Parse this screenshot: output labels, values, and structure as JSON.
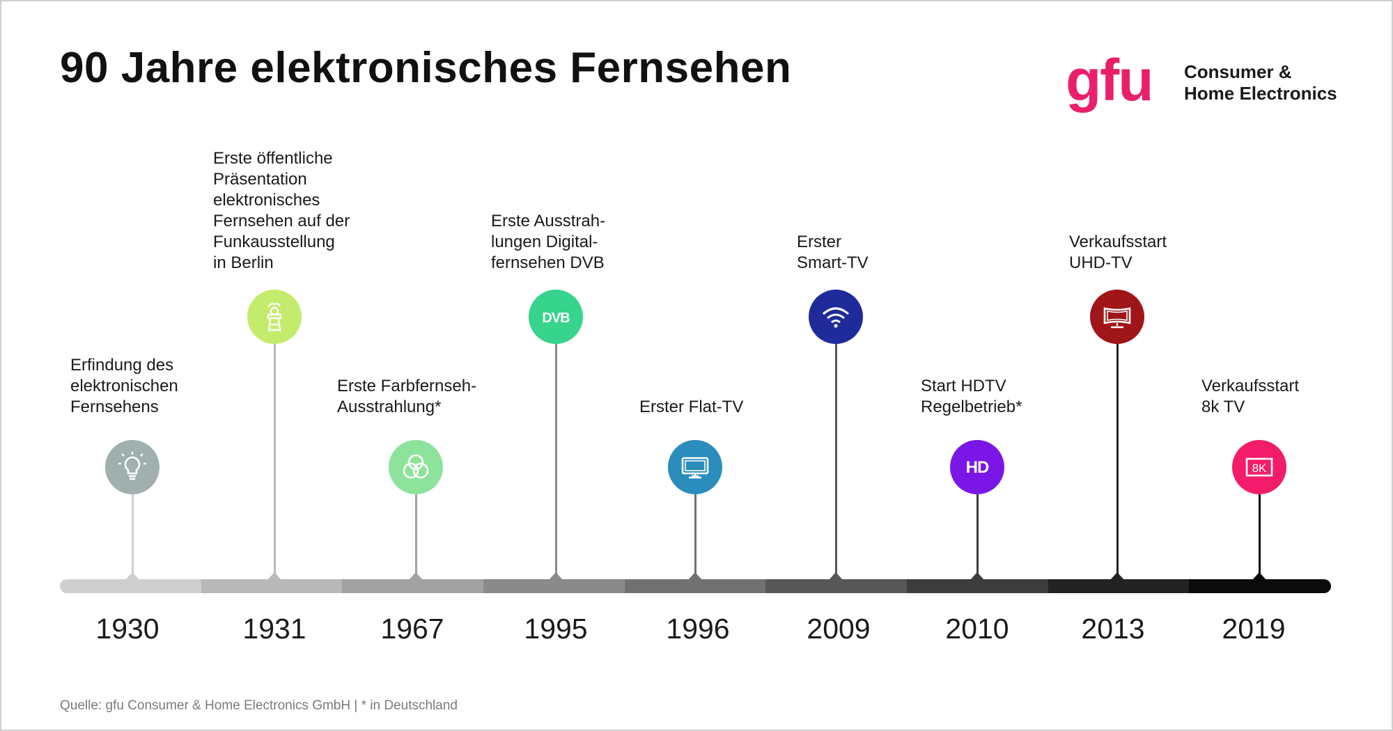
{
  "header": {
    "title": "90 Jahre elektronisches Fernsehen"
  },
  "logo": {
    "mark": "gfu",
    "line1": "Consumer &",
    "line2": "Home Electronics",
    "color": "#ea1f6b"
  },
  "timeline": {
    "events": [
      {
        "year": "1930",
        "label": "Erfindung des\nelektronischen\nFernsehens",
        "icon": "lightbulb-icon",
        "color": "#9fb0ae"
      },
      {
        "year": "1931",
        "label": "Erste öffentliche\nPräsentation\nelektronisches\nFernsehen auf der\nFunkausstellung\nin Berlin",
        "icon": "radio-tower-icon",
        "color": "#c4ec6c"
      },
      {
        "year": "1967",
        "label": "Erste Farbfernseh-\nAusstrahlung*",
        "icon": "rgb-circles-icon",
        "color": "#8de39c"
      },
      {
        "year": "1995",
        "label": "Erste Ausstrah-\nlungen Digital-\nfernsehen DVB",
        "icon": "dvb-icon",
        "color": "#36d48c",
        "icon_text": "DVB"
      },
      {
        "year": "1996",
        "label": "Erster Flat-TV",
        "icon": "flat-tv-icon",
        "color": "#2a8dbb"
      },
      {
        "year": "2009",
        "label": "Erster\nSmart-TV",
        "icon": "wifi-icon",
        "color": "#1f2b9a"
      },
      {
        "year": "2010",
        "label": "Start HDTV\nRegelbetrieb*",
        "icon": "hd-icon",
        "color": "#7a17e6",
        "icon_text": "HD"
      },
      {
        "year": "2013",
        "label": "Verkaufsstart\nUHD-TV",
        "icon": "curved-tv-icon",
        "color": "#a01517"
      },
      {
        "year": "2019",
        "label": "Verkaufsstart\n8k TV",
        "icon": "8k-icon",
        "color": "#f21c6a",
        "icon_text": "8K"
      }
    ],
    "bar_colors": [
      "#cfcfcf",
      "#b9b9b9",
      "#a2a2a2",
      "#8a8a8a",
      "#717171",
      "#575757",
      "#3c3c3c",
      "#232323",
      "#0b0b0b"
    ]
  },
  "footer": {
    "source": "Quelle: gfu Consumer & Home Electronics GmbH | * in Deutschland"
  }
}
